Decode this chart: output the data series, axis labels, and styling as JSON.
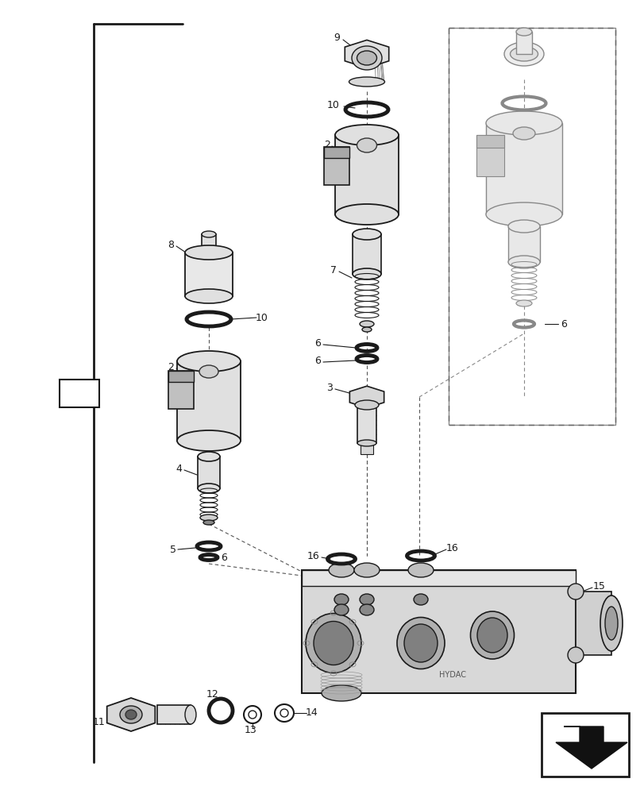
{
  "bg": "#ffffff",
  "fg": "#1a1a1a",
  "gray1": "#cccccc",
  "gray2": "#aaaaaa",
  "gray3": "#888888",
  "fig_width": 8.12,
  "fig_height": 10.0,
  "dpi": 100
}
